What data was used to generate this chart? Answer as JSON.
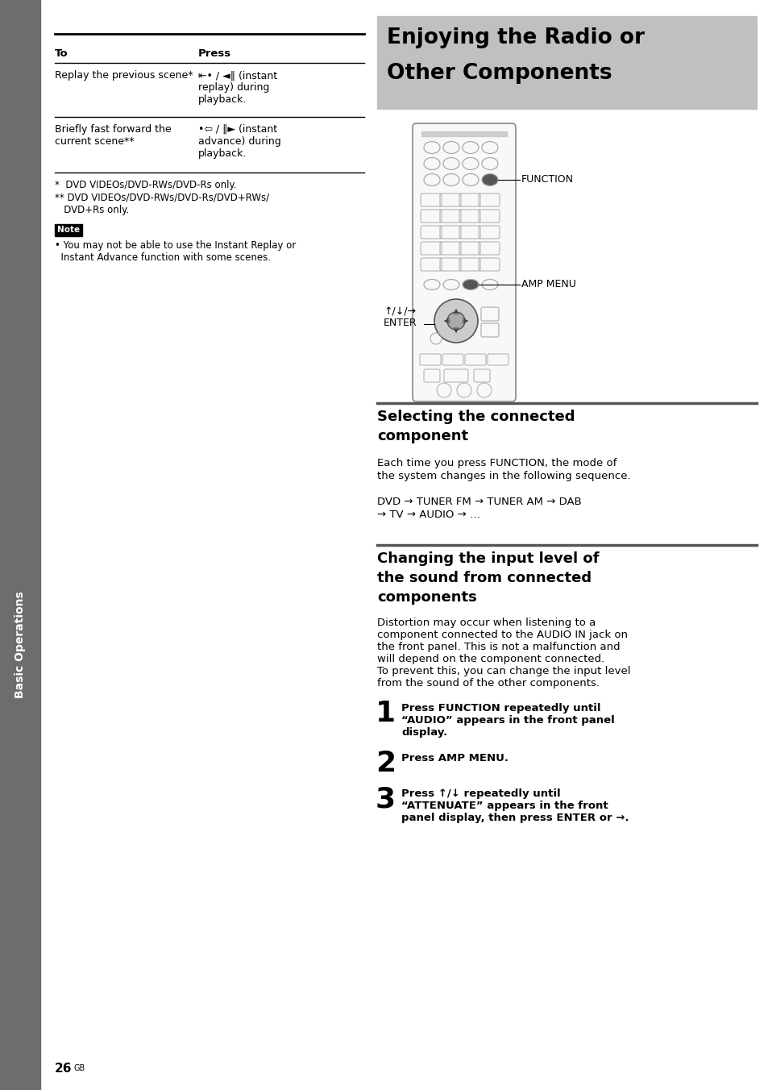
{
  "page_bg": "#ffffff",
  "sidebar_color": "#6d6d6d",
  "sidebar_text": "Basic Operations",
  "header_box_color": "#c0c0c0",
  "header_title_line1": "Enjoying the Radio or",
  "header_title_line2": "Other Components",
  "table_header_to": "To",
  "table_header_press": "Press",
  "table_row1_to": "Replay the previous scene*",
  "table_row1_press_line1": "⇤• / ◄‖ (instant",
  "table_row1_press_line2": "replay) during",
  "table_row1_press_line3": "playback.",
  "table_row2_to_line1": "Briefly fast forward the",
  "table_row2_to_line2": "current scene**",
  "table_row2_press_line1": "•⇦ / ‖► (instant",
  "table_row2_press_line2": "advance) during",
  "table_row2_press_line3": "playback.",
  "footnote1": "*  DVD VIDEOs/DVD-RWs/DVD-Rs only.",
  "footnote2a": "** DVD VIDEOs/DVD-RWs/DVD-Rs/DVD+RWs/",
  "footnote2b": "   DVD+Rs only.",
  "note_label": "Note",
  "note_text_line1": "• You may not be able to use the Instant Replay or",
  "note_text_line2": "  Instant Advance function with some scenes.",
  "section1_title_line1": "Selecting the connected",
  "section1_title_line2": "component",
  "section1_body_line1": "Each time you press FUNCTION, the mode of",
  "section1_body_line2": "the system changes in the following sequence.",
  "section1_seq_line1": "DVD → TUNER FM → TUNER AM → DAB",
  "section1_seq_line2": "→ TV → AUDIO → …",
  "section2_title_line1": "Changing the input level of",
  "section2_title_line2": "the sound from connected",
  "section2_title_line3": "components",
  "section2_body_line1": "Distortion may occur when listening to a",
  "section2_body_line2": "component connected to the AUDIO IN jack on",
  "section2_body_line3": "the front panel. This is not a malfunction and",
  "section2_body_line4": "will depend on the component connected.",
  "section2_body_line5": "To prevent this, you can change the input level",
  "section2_body_line6": "from the sound of the other components.",
  "step1_num": "1",
  "step1_line1": "Press FUNCTION repeatedly until",
  "step1_line2": "“AUDIO” appears in the front panel",
  "step1_line3": "display.",
  "step2_num": "2",
  "step2_line1": "Press AMP MENU.",
  "step3_num": "3",
  "step3_line1": "Press ↑/↓ repeatedly until",
  "step3_line2": "“ATTENUATE” appears in the front",
  "step3_line3": "panel display, then press ENTER or →.",
  "page_number": "26",
  "page_superscript": "GB",
  "function_label": "FUNCTION",
  "amp_menu_label": "AMP MENU",
  "enter_label_line1": "↑/↓/→",
  "enter_label_line2": "ENTER"
}
